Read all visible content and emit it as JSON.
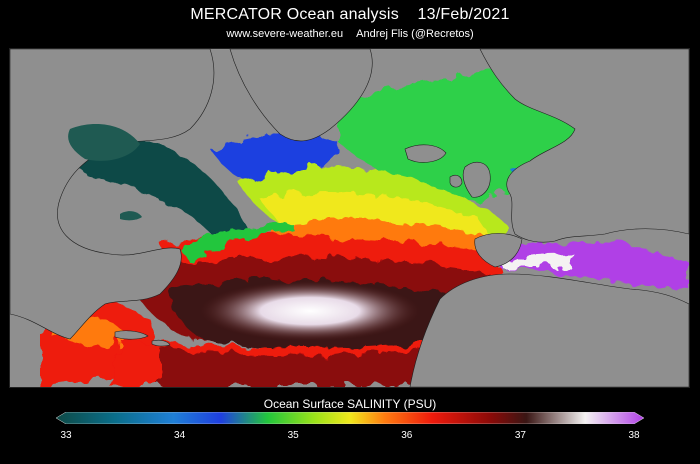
{
  "title": {
    "text": "MERCATOR Ocean analysis",
    "date": "13/Feb/2021"
  },
  "subtitle": {
    "site": "www.severe-weather.eu",
    "author": "Andrej Flis (@Recretos)"
  },
  "colorbar": {
    "label": "Ocean Surface SALINITY (PSU)",
    "min": 33,
    "max": 38,
    "ticks": [
      "33",
      "34",
      "35",
      "36",
      "37",
      "38"
    ],
    "stops": [
      {
        "v": 33.0,
        "c": "#0e4a46"
      },
      {
        "v": 33.5,
        "c": "#0a6e8a"
      },
      {
        "v": 34.0,
        "c": "#1f7fd6"
      },
      {
        "v": 34.4,
        "c": "#1f3fe0"
      },
      {
        "v": 34.8,
        "c": "#22c63c"
      },
      {
        "v": 35.2,
        "c": "#9ce21a"
      },
      {
        "v": 35.5,
        "c": "#f0e81c"
      },
      {
        "v": 35.8,
        "c": "#ff7a10"
      },
      {
        "v": 36.2,
        "c": "#ee1a0c"
      },
      {
        "v": 36.7,
        "c": "#8a0a08"
      },
      {
        "v": 37.0,
        "c": "#3a1614"
      },
      {
        "v": 37.5,
        "c": "#f4f2f2"
      },
      {
        "v": 38.0,
        "c": "#b040e6"
      }
    ]
  },
  "colors": {
    "land": "#8f8f8f",
    "inland_water": "#1f5a52",
    "background": "#000000"
  }
}
